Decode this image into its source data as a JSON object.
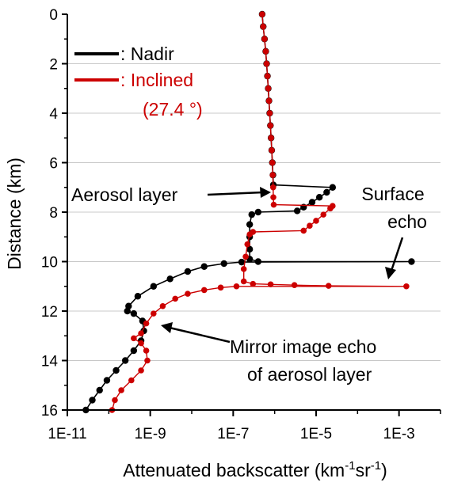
{
  "chart_data": {
    "type": "scatter",
    "title": "",
    "xlabel": {
      "base": "Attenuated backscatter (km",
      "sup1": "-1",
      "mid": "sr",
      "sup2": "-1",
      "end": ")"
    },
    "ylabel": "Distance (km)",
    "x_scale": "log",
    "xlim": [
      1e-11,
      0.01
    ],
    "ylim": [
      16,
      0
    ],
    "y_inverted": true,
    "grid": "horizontal dashed",
    "x_ticks": [
      {
        "value": 1e-11,
        "label": "1E-11"
      },
      {
        "value": 1e-09,
        "label": "1E-9"
      },
      {
        "value": 1e-07,
        "label": "1E-7"
      },
      {
        "value": 1e-05,
        "label": "1E-5"
      },
      {
        "value": 0.001,
        "label": "1E-3"
      }
    ],
    "y_ticks": [
      {
        "value": 0,
        "label": "0"
      },
      {
        "value": 2,
        "label": "2"
      },
      {
        "value": 4,
        "label": "4"
      },
      {
        "value": 6,
        "label": "6"
      },
      {
        "value": 8,
        "label": "8"
      },
      {
        "value": 10,
        "label": "10"
      },
      {
        "value": 12,
        "label": "12"
      },
      {
        "value": 14,
        "label": "14"
      },
      {
        "value": 16,
        "label": "16"
      }
    ],
    "legend": {
      "placement": "top-left",
      "entries": [
        {
          "label": ": Nadir",
          "color": "#000000"
        },
        {
          "label": ": Inclined",
          "label2": "(27.4 °)",
          "color": "#cc0000"
        }
      ]
    },
    "series": [
      {
        "name": "Nadir",
        "color": "#000000",
        "points": [
          {
            "x": 5e-07,
            "y": 0.0
          },
          {
            "x": 5.3e-07,
            "y": 0.5
          },
          {
            "x": 5.7e-07,
            "y": 1.0
          },
          {
            "x": 6.1e-07,
            "y": 1.5
          },
          {
            "x": 6.4e-07,
            "y": 2.0
          },
          {
            "x": 6.7e-07,
            "y": 2.5
          },
          {
            "x": 7e-07,
            "y": 3.0
          },
          {
            "x": 7.3e-07,
            "y": 3.5
          },
          {
            "x": 7.6e-07,
            "y": 4.0
          },
          {
            "x": 7.9e-07,
            "y": 4.5
          },
          {
            "x": 8.2e-07,
            "y": 5.0
          },
          {
            "x": 8.5e-07,
            "y": 5.5
          },
          {
            "x": 8.8e-07,
            "y": 6.0
          },
          {
            "x": 9.1e-07,
            "y": 6.5
          },
          {
            "x": 9.3e-07,
            "y": 6.9
          },
          {
            "x": 2.5e-05,
            "y": 7.0
          },
          {
            "x": 1.8e-05,
            "y": 7.2
          },
          {
            "x": 1.2e-05,
            "y": 7.4
          },
          {
            "x": 8e-06,
            "y": 7.6
          },
          {
            "x": 5e-06,
            "y": 7.8
          },
          {
            "x": 3.5e-06,
            "y": 7.95
          },
          {
            "x": 4e-07,
            "y": 8.0
          },
          {
            "x": 2.8e-07,
            "y": 8.1
          },
          {
            "x": 2.5e-07,
            "y": 8.5
          },
          {
            "x": 2.5e-07,
            "y": 9.0
          },
          {
            "x": 2.5e-07,
            "y": 9.5
          },
          {
            "x": 2.5e-07,
            "y": 9.9
          },
          {
            "x": 4e-07,
            "y": 10.0
          },
          {
            "x": 0.002,
            "y": 10.0
          },
          {
            "x": 1.6e-07,
            "y": 10.02
          },
          {
            "x": 6e-08,
            "y": 10.08
          },
          {
            "x": 2e-08,
            "y": 10.2
          },
          {
            "x": 8e-09,
            "y": 10.4
          },
          {
            "x": 3e-09,
            "y": 10.7
          },
          {
            "x": 1.2e-09,
            "y": 11.0
          },
          {
            "x": 5e-10,
            "y": 11.4
          },
          {
            "x": 3e-10,
            "y": 11.8
          },
          {
            "x": 2.8e-10,
            "y": 12.0
          },
          {
            "x": 4e-10,
            "y": 12.1
          },
          {
            "x": 6.5e-10,
            "y": 12.4
          },
          {
            "x": 7e-10,
            "y": 12.8
          },
          {
            "x": 6e-10,
            "y": 13.2
          },
          {
            "x": 4e-10,
            "y": 13.6
          },
          {
            "x": 2.5e-10,
            "y": 14.0
          },
          {
            "x": 1.5e-10,
            "y": 14.4
          },
          {
            "x": 9e-11,
            "y": 14.8
          },
          {
            "x": 6e-11,
            "y": 15.2
          },
          {
            "x": 4e-11,
            "y": 15.6
          },
          {
            "x": 2.8e-11,
            "y": 16.0
          }
        ]
      },
      {
        "name": "Inclined",
        "color": "#cc0000",
        "points": [
          {
            "x": 5e-07,
            "y": 0.0
          },
          {
            "x": 5.3e-07,
            "y": 0.5
          },
          {
            "x": 5.7e-07,
            "y": 1.0
          },
          {
            "x": 6.1e-07,
            "y": 1.5
          },
          {
            "x": 6.4e-07,
            "y": 2.0
          },
          {
            "x": 6.7e-07,
            "y": 2.5
          },
          {
            "x": 7e-07,
            "y": 3.0
          },
          {
            "x": 7.3e-07,
            "y": 3.5
          },
          {
            "x": 7.6e-07,
            "y": 4.0
          },
          {
            "x": 7.9e-07,
            "y": 4.5
          },
          {
            "x": 8.2e-07,
            "y": 5.0
          },
          {
            "x": 8.5e-07,
            "y": 5.5
          },
          {
            "x": 8.8e-07,
            "y": 6.0
          },
          {
            "x": 9e-07,
            "y": 6.5
          },
          {
            "x": 9.2e-07,
            "y": 7.0
          },
          {
            "x": 9.3e-07,
            "y": 7.4
          },
          {
            "x": 9.5e-07,
            "y": 7.7
          },
          {
            "x": 2.5e-05,
            "y": 7.75
          },
          {
            "x": 2.2e-05,
            "y": 7.85
          },
          {
            "x": 1.5e-05,
            "y": 8.1
          },
          {
            "x": 1e-05,
            "y": 8.35
          },
          {
            "x": 7e-06,
            "y": 8.55
          },
          {
            "x": 5e-06,
            "y": 8.75
          },
          {
            "x": 3e-07,
            "y": 8.8
          },
          {
            "x": 2.5e-07,
            "y": 8.9
          },
          {
            "x": 2.2e-07,
            "y": 9.3
          },
          {
            "x": 2e-07,
            "y": 9.8
          },
          {
            "x": 1.8e-07,
            "y": 10.3
          },
          {
            "x": 1.8e-07,
            "y": 10.8
          },
          {
            "x": 3e-07,
            "y": 10.9
          },
          {
            "x": 8e-07,
            "y": 10.92
          },
          {
            "x": 3e-06,
            "y": 10.95
          },
          {
            "x": 2e-05,
            "y": 10.98
          },
          {
            "x": 0.0015,
            "y": 11.0
          },
          {
            "x": 1.2e-07,
            "y": 11.0
          },
          {
            "x": 5e-08,
            "y": 11.05
          },
          {
            "x": 2e-08,
            "y": 11.15
          },
          {
            "x": 8e-09,
            "y": 11.3
          },
          {
            "x": 4e-09,
            "y": 11.5
          },
          {
            "x": 2e-09,
            "y": 11.8
          },
          {
            "x": 1.2e-09,
            "y": 12.1
          },
          {
            "x": 8e-10,
            "y": 12.5
          },
          {
            "x": 6e-10,
            "y": 12.9
          },
          {
            "x": 4e-10,
            "y": 13.1
          },
          {
            "x": 6e-10,
            "y": 13.3
          },
          {
            "x": 8e-10,
            "y": 13.6
          },
          {
            "x": 8.5e-10,
            "y": 14.0
          },
          {
            "x": 6e-10,
            "y": 14.4
          },
          {
            "x": 3.5e-10,
            "y": 14.8
          },
          {
            "x": 2e-10,
            "y": 15.2
          },
          {
            "x": 1.4e-10,
            "y": 15.6
          },
          {
            "x": 1.2e-10,
            "y": 16.0
          }
        ]
      }
    ],
    "annotations": [
      {
        "text": "Aerosol layer"
      },
      {
        "text": "Surface",
        "text2": "echo"
      },
      {
        "text": "Mirror image echo",
        "text2": "of aerosol layer"
      }
    ]
  }
}
